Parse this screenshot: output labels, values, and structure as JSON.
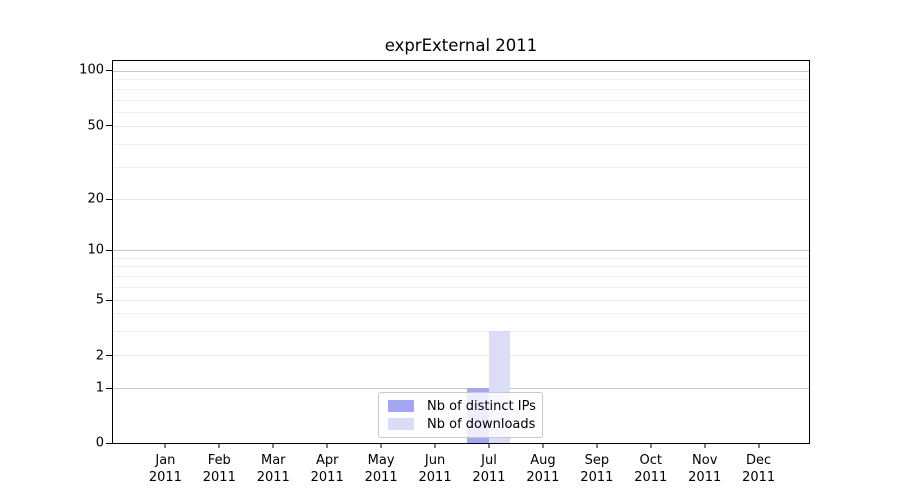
{
  "chart_data": {
    "type": "bar",
    "title": "exprExternal 2011",
    "x_year": "2011",
    "categories": [
      "Jan",
      "Feb",
      "Mar",
      "Apr",
      "May",
      "Jun",
      "Jul",
      "Aug",
      "Sep",
      "Oct",
      "Nov",
      "Dec"
    ],
    "series": [
      {
        "name": "Nb of distinct IPs",
        "color": "#a5a6f1",
        "values": [
          0,
          0,
          0,
          0,
          0,
          0,
          1,
          0,
          0,
          0,
          0,
          0
        ]
      },
      {
        "name": "Nb of downloads",
        "color": "#dbdcf8",
        "values": [
          0,
          0,
          0,
          0,
          0,
          0,
          3,
          0,
          0,
          0,
          0,
          0
        ]
      }
    ],
    "y_axis": {
      "scale": "log (linear segment from 0 to 1)",
      "ticks": [
        {
          "value": 100,
          "label": "100",
          "pct": 2.68,
          "grid": "decade"
        },
        {
          "value": 50,
          "label": "50",
          "pct": 17.11,
          "grid": "labeled"
        },
        {
          "value": 20,
          "label": "20",
          "pct": 36.2,
          "grid": "labeled"
        },
        {
          "value": 10,
          "label": "10",
          "pct": 49.56,
          "grid": "decade"
        },
        {
          "value": 5,
          "label": "5",
          "pct": 62.5,
          "grid": "labeled"
        },
        {
          "value": 2,
          "label": "2",
          "pct": 77.08,
          "grid": "labeled"
        },
        {
          "value": 1,
          "label": "1",
          "pct": 85.49,
          "grid": "decade"
        },
        {
          "value": 0,
          "label": "0",
          "pct": 99.8,
          "grid": "none"
        }
      ],
      "minor_gridline_pcts": [
        4.8,
        7.3,
        10.1,
        13.3,
        21.8,
        27.8,
        51.5,
        53.7,
        56.2,
        59.1,
        66.0,
        70.6
      ]
    },
    "x_axis": {
      "first_center_pct": 7.65,
      "step_pct": 7.7265,
      "bar_width_pct": 3.08
    },
    "grid": true,
    "legend_position": "inside lower center"
  },
  "colors": {
    "background": "#ffffff",
    "spine": "#000000",
    "grid_decade": "#c6c6c6",
    "grid_labeled": "#e7e7e7",
    "grid_minor": "#efefef",
    "legend_border": "#c9c9c9",
    "text": "#000000"
  }
}
